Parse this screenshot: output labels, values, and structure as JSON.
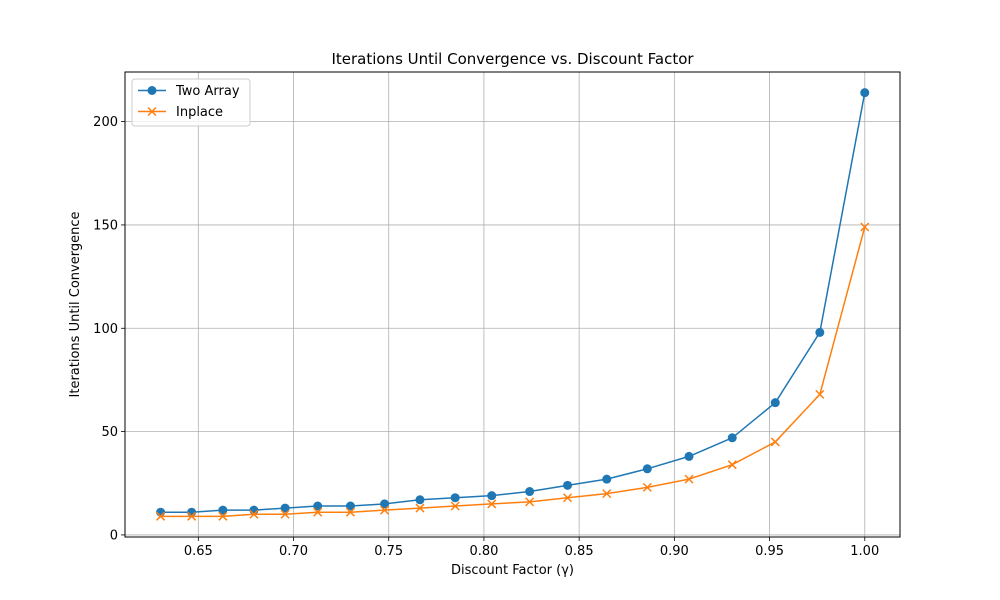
{
  "chart_data": {
    "type": "line",
    "title": "Iterations Until Convergence vs. Discount Factor",
    "xlabel": "Discount Factor (γ)",
    "ylabel": "Iterations Until Convergence",
    "xlim": [
      0.6115,
      1.0185
    ],
    "ylim": [
      -1,
      224
    ],
    "xticks": [
      0.65,
      0.7,
      0.75,
      0.8,
      0.85,
      0.9,
      0.95,
      1.0
    ],
    "xtick_labels": [
      "0.65",
      "0.70",
      "0.75",
      "0.80",
      "0.85",
      "0.90",
      "0.95",
      "1.00"
    ],
    "yticks": [
      0,
      50,
      100,
      150,
      200
    ],
    "ytick_labels": [
      "0",
      "50",
      "100",
      "150",
      "200"
    ],
    "grid": true,
    "legend_position": "top-left",
    "x": [
      0.6302,
      0.6465,
      0.6629,
      0.6792,
      0.6956,
      0.7127,
      0.7299,
      0.7478,
      0.7664,
      0.7849,
      0.8041,
      0.824,
      0.8439,
      0.8645,
      0.8858,
      0.9077,
      0.9304,
      0.953,
      0.9764,
      1.0
    ],
    "series": [
      {
        "name": "Two Array",
        "color": "#1f77b4",
        "marker": "circle",
        "values": [
          11,
          11,
          12,
          12,
          13,
          14,
          14,
          15,
          17,
          18,
          19,
          21,
          24,
          27,
          32,
          38,
          47,
          64,
          98,
          214
        ]
      },
      {
        "name": "Inplace",
        "color": "#ff7f0e",
        "marker": "x",
        "values": [
          9,
          9,
          9,
          10,
          10,
          11,
          11,
          12,
          13,
          14,
          15,
          16,
          18,
          20,
          23,
          27,
          34,
          45,
          68,
          149
        ]
      }
    ]
  }
}
